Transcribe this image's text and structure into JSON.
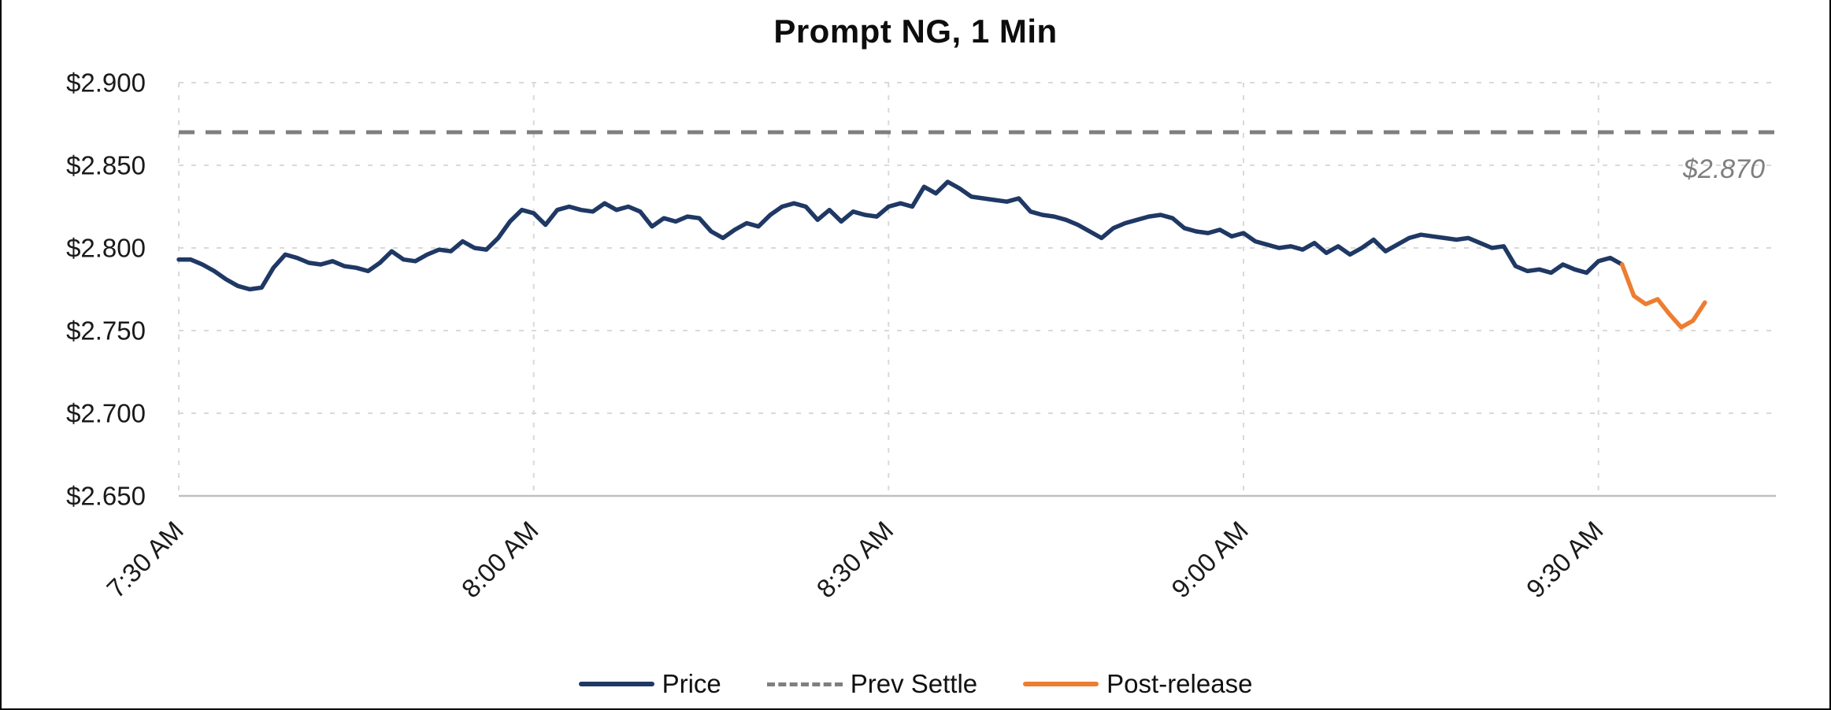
{
  "title": "Prompt NG, 1 Min",
  "legend": {
    "items": [
      {
        "label": "Price",
        "color": "#1f3864",
        "style": "solid"
      },
      {
        "label": "Prev Settle",
        "color": "#7f7f7f",
        "style": "dashed"
      },
      {
        "label": "Post-release",
        "color": "#ed7d31",
        "style": "solid"
      }
    ]
  },
  "colors": {
    "price": "#1f3864",
    "post_release": "#ed7d31",
    "prev_settle": "#7f7f7f",
    "gridline": "#d9d9d9",
    "axis": "#bfbfbf",
    "annotation_text": "#7f7f7f",
    "label_text": "#1a1a1a",
    "title_text": "#0d0d0d"
  },
  "chart_data": {
    "type": "line",
    "title": "Prompt NG, 1 Min",
    "xlabel": "",
    "ylabel": "",
    "grid": true,
    "legend_position": "bottom",
    "ylim": [
      2.65,
      2.9
    ],
    "xlim_minutes": [
      0,
      135
    ],
    "x_unit": "minutes after 7:30 AM (1-minute data)",
    "x_ticks": [
      {
        "minute": 0,
        "label": "7:30 AM"
      },
      {
        "minute": 30,
        "label": "8:00 AM"
      },
      {
        "minute": 60,
        "label": "8:30 AM"
      },
      {
        "minute": 90,
        "label": "9:00 AM"
      },
      {
        "minute": 120,
        "label": "9:30 AM"
      }
    ],
    "y_ticks": [
      {
        "value": 2.65,
        "label": "$2.650"
      },
      {
        "value": 2.7,
        "label": "$2.700"
      },
      {
        "value": 2.75,
        "label": "$2.750"
      },
      {
        "value": 2.8,
        "label": "$2.800"
      },
      {
        "value": 2.85,
        "label": "$2.850"
      },
      {
        "value": 2.9,
        "label": "$2.900"
      }
    ],
    "prev_settle": {
      "value": 2.87,
      "label": "$2.870",
      "color": "#7f7f7f",
      "style": "dashed"
    },
    "series": [
      {
        "name": "Price",
        "color": "#1f3864",
        "style": "solid",
        "start_minute": 0,
        "step_minutes": 1,
        "values": [
          2.793,
          2.793,
          2.79,
          2.786,
          2.781,
          2.777,
          2.775,
          2.776,
          2.788,
          2.796,
          2.794,
          2.791,
          2.79,
          2.792,
          2.789,
          2.788,
          2.786,
          2.791,
          2.798,
          2.793,
          2.792,
          2.796,
          2.799,
          2.798,
          2.804,
          2.8,
          2.799,
          2.806,
          2.816,
          2.823,
          2.821,
          2.814,
          2.823,
          2.825,
          2.823,
          2.822,
          2.827,
          2.823,
          2.825,
          2.822,
          2.813,
          2.818,
          2.816,
          2.819,
          2.818,
          2.81,
          2.806,
          2.811,
          2.815,
          2.813,
          2.82,
          2.825,
          2.827,
          2.825,
          2.817,
          2.823,
          2.816,
          2.822,
          2.82,
          2.819,
          2.825,
          2.827,
          2.825,
          2.837,
          2.833,
          2.84,
          2.836,
          2.831,
          2.83,
          2.829,
          2.828,
          2.83,
          2.822,
          2.82,
          2.819,
          2.817,
          2.814,
          2.81,
          2.806,
          2.812,
          2.815,
          2.817,
          2.819,
          2.82,
          2.818,
          2.812,
          2.81,
          2.809,
          2.811,
          2.807,
          2.809,
          2.804,
          2.802,
          2.8,
          2.801,
          2.799,
          2.803,
          2.797,
          2.801,
          2.796,
          2.8,
          2.805,
          2.798,
          2.802,
          2.806,
          2.808,
          2.807,
          2.806,
          2.805,
          2.806,
          2.803,
          2.8,
          2.801,
          2.789,
          2.786,
          2.787,
          2.785,
          2.79,
          2.787,
          2.785,
          2.792,
          2.794,
          2.79
        ]
      },
      {
        "name": "Post-release",
        "color": "#ed7d31",
        "style": "solid",
        "start_minute": 122,
        "step_minutes": 1,
        "values": [
          2.79,
          2.771,
          2.766,
          2.769,
          2.76,
          2.752,
          2.756,
          2.767
        ]
      }
    ]
  }
}
